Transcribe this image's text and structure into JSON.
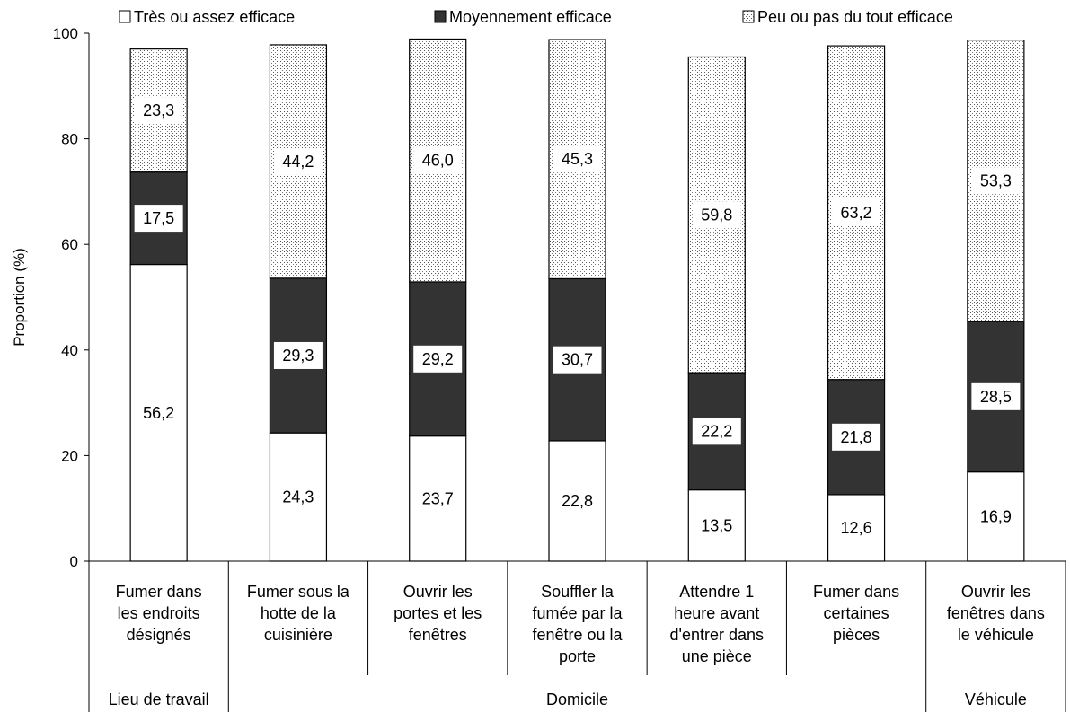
{
  "chart_data": {
    "type": "bar",
    "stacked": true,
    "ylabel": "Proportion (%)",
    "ylim": [
      0,
      100
    ],
    "yticks": [
      0,
      20,
      40,
      60,
      80,
      100
    ],
    "grid": false,
    "legend_position": "top",
    "categories": [
      [
        "Fumer dans",
        "les endroits",
        "désignés"
      ],
      [
        "Fumer sous la",
        "hotte de la",
        "cuisinière"
      ],
      [
        "Ouvrir les",
        "portes et les",
        "fenêtres"
      ],
      [
        "Souffler la",
        "fumée par la",
        "fenêtre ou la",
        "porte"
      ],
      [
        "Attendre 1",
        "heure avant",
        "d'entrer dans",
        "une pièce"
      ],
      [
        "Fumer dans",
        "certaines",
        "pièces"
      ],
      [
        "Ouvrir les",
        "fenêtres dans",
        "le véhicule"
      ]
    ],
    "groups": [
      {
        "label": "Lieu de travail",
        "count": 1
      },
      {
        "label": "Domicile",
        "count": 5
      },
      {
        "label": "Véhicule",
        "count": 1
      }
    ],
    "series": [
      {
        "name": "Très ou assez efficace",
        "pattern": "white",
        "values": [
          56.2,
          24.3,
          23.7,
          22.8,
          13.5,
          12.6,
          16.9
        ],
        "labels": [
          "56,2",
          "24,3",
          "23,7",
          "22,8",
          "13,5",
          "12,6",
          "16,9"
        ]
      },
      {
        "name": "Moyennement efficace",
        "pattern": "dark",
        "color": "#333333",
        "values": [
          17.5,
          29.3,
          29.2,
          30.7,
          22.2,
          21.8,
          28.5
        ],
        "labels": [
          "17,5",
          "29,3",
          "29,2",
          "30,7",
          "22,2",
          "21,8",
          "28,5"
        ]
      },
      {
        "name": "Peu ou pas du tout efficace",
        "pattern": "dotted",
        "values": [
          23.3,
          44.2,
          46.0,
          45.3,
          59.8,
          63.2,
          53.3
        ],
        "labels": [
          "23,3",
          "44,2",
          "46,0",
          "45,3",
          "59,8",
          "63,2",
          "53,3"
        ]
      }
    ]
  }
}
